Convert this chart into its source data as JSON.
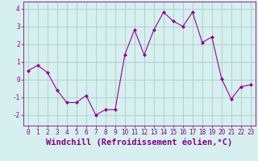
{
  "x": [
    0,
    1,
    2,
    3,
    4,
    5,
    6,
    7,
    8,
    9,
    10,
    11,
    12,
    13,
    14,
    15,
    16,
    17,
    18,
    19,
    20,
    21,
    22,
    23
  ],
  "y": [
    0.5,
    0.8,
    0.4,
    -0.6,
    -1.3,
    -1.3,
    -0.9,
    -2.0,
    -1.7,
    -1.7,
    1.4,
    2.8,
    1.4,
    2.8,
    3.8,
    3.3,
    3.0,
    3.8,
    2.1,
    2.4,
    0.05,
    -1.1,
    -0.4,
    -0.3
  ],
  "line_color": "#990099",
  "marker": "D",
  "marker_size": 2,
  "bg_color": "#d6f0f0",
  "grid_color": "#aacccc",
  "xlabel": "Windchill (Refroidissement éolien,°C)",
  "xlim": [
    -0.5,
    23.5
  ],
  "ylim": [
    -2.6,
    4.4
  ],
  "yticks": [
    -2,
    -1,
    0,
    1,
    2,
    3,
    4
  ],
  "xticks": [
    0,
    1,
    2,
    3,
    4,
    5,
    6,
    7,
    8,
    9,
    10,
    11,
    12,
    13,
    14,
    15,
    16,
    17,
    18,
    19,
    20,
    21,
    22,
    23
  ],
  "tick_color": "#880088",
  "tick_fontsize": 5.5,
  "xlabel_fontsize": 7.5
}
